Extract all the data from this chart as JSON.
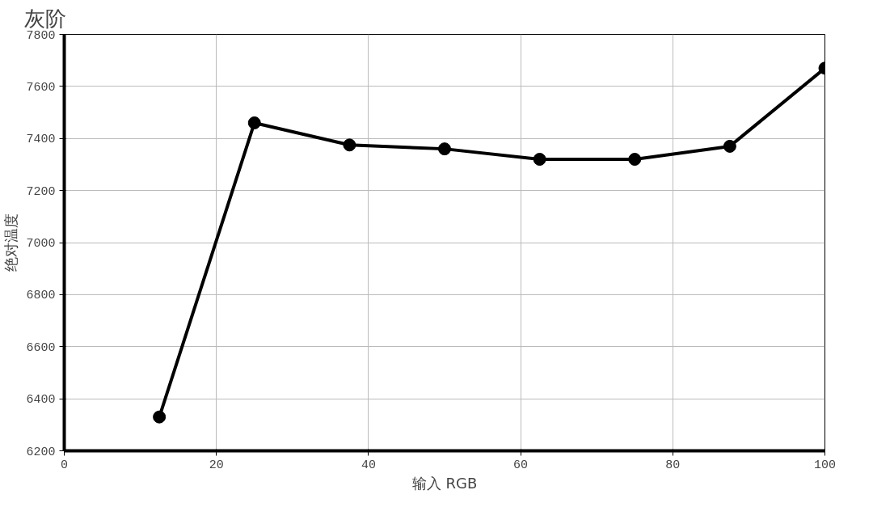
{
  "chart_data": {
    "type": "line",
    "title": "灰阶",
    "xlabel": "输入 RGB",
    "ylabel": "绝对温度",
    "x": [
      12.5,
      25,
      37.5,
      50,
      62.5,
      75,
      87.5,
      100
    ],
    "series": [
      {
        "color": "#000000",
        "values": [
          6330,
          7460,
          7375,
          7360,
          7320,
          7320,
          7370,
          7670
        ]
      }
    ],
    "xlim": [
      0,
      100
    ],
    "xticks": [
      0,
      20,
      40,
      60,
      80,
      100
    ],
    "ylim": [
      6200,
      7800
    ],
    "yticks": [
      6200,
      6400,
      6600,
      6800,
      7000,
      7200,
      7400,
      7600,
      7800
    ],
    "grid": true,
    "marker": "circle",
    "line_style": "solid"
  }
}
